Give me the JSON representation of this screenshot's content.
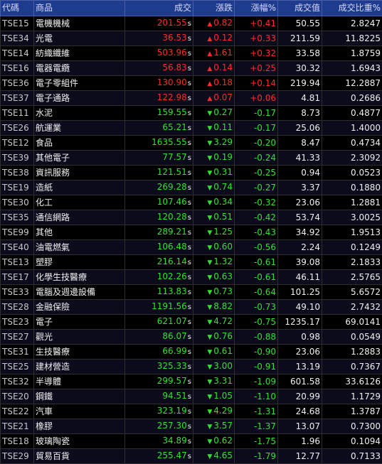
{
  "headers": {
    "code": "代碼",
    "name": "商品",
    "price": "成交",
    "change": "漲跌",
    "pct": "漲幅%",
    "value": "成交值",
    "weight": "成交比重%"
  },
  "colors": {
    "up": "#ff2a2a",
    "down": "#2fe22f",
    "header_bg": "#1e3b8e"
  },
  "rows": [
    {
      "code": "TSE15",
      "name": "電機機械",
      "price": "201.55",
      "s": "s",
      "arrow": "▲",
      "change": "0.82",
      "pct": "+0.41",
      "value": "50.55",
      "weight": "2.8247",
      "dir": "up"
    },
    {
      "code": "TSE34",
      "name": "光電",
      "price": "36.53",
      "s": "s",
      "arrow": "▲",
      "change": "0.12",
      "pct": "+0.33",
      "value": "211.59",
      "weight": "11.8225",
      "dir": "up"
    },
    {
      "code": "TSE14",
      "name": "紡織纖維",
      "price": "503.96",
      "s": "s",
      "arrow": "▲",
      "change": "1.61",
      "pct": "+0.32",
      "value": "33.58",
      "weight": "1.8759",
      "dir": "up"
    },
    {
      "code": "TSE16",
      "name": "電器電纜",
      "price": "56.83",
      "s": "s",
      "arrow": "▲",
      "change": "0.14",
      "pct": "+0.25",
      "value": "30.32",
      "weight": "1.6943",
      "dir": "up"
    },
    {
      "code": "TSE36",
      "name": "電子零組件",
      "price": "130.90",
      "s": "s",
      "arrow": "▲",
      "change": "0.18",
      "pct": "+0.14",
      "value": "219.94",
      "weight": "12.2887",
      "dir": "up"
    },
    {
      "code": "TSE37",
      "name": "電子通路",
      "price": "122.98",
      "s": "s",
      "arrow": "▲",
      "change": "0.07",
      "pct": "+0.06",
      "value": "4.81",
      "weight": "0.2686",
      "dir": "up"
    },
    {
      "code": "TSE11",
      "name": "水泥",
      "price": "159.55",
      "s": "s",
      "arrow": "▼",
      "change": "0.27",
      "pct": "-0.17",
      "value": "8.73",
      "weight": "0.4877",
      "dir": "down"
    },
    {
      "code": "TSE26",
      "name": "航運業",
      "price": "65.21",
      "s": "s",
      "arrow": "▼",
      "change": "0.11",
      "pct": "-0.17",
      "value": "25.06",
      "weight": "1.4000",
      "dir": "down"
    },
    {
      "code": "TSE12",
      "name": "食品",
      "price": "1635.55",
      "s": "s",
      "arrow": "▼",
      "change": "3.29",
      "pct": "-0.20",
      "value": "8.47",
      "weight": "0.4734",
      "dir": "down"
    },
    {
      "code": "TSE39",
      "name": "其他電子",
      "price": "77.57",
      "s": "s",
      "arrow": "▼",
      "change": "0.19",
      "pct": "-0.24",
      "value": "41.33",
      "weight": "2.3092",
      "dir": "down"
    },
    {
      "code": "TSE38",
      "name": "資訊服務",
      "price": "121.51",
      "s": "s",
      "arrow": "▼",
      "change": "0.31",
      "pct": "-0.25",
      "value": "0.94",
      "weight": "0.0523",
      "dir": "down"
    },
    {
      "code": "TSE19",
      "name": "造紙",
      "price": "269.28",
      "s": "s",
      "arrow": "▼",
      "change": "0.74",
      "pct": "-0.27",
      "value": "3.37",
      "weight": "0.1880",
      "dir": "down"
    },
    {
      "code": "TSE30",
      "name": "化工",
      "price": "107.46",
      "s": "s",
      "arrow": "▼",
      "change": "0.34",
      "pct": "-0.32",
      "value": "23.06",
      "weight": "1.2881",
      "dir": "down"
    },
    {
      "code": "TSE35",
      "name": "通信網路",
      "price": "120.28",
      "s": "s",
      "arrow": "▼",
      "change": "0.51",
      "pct": "-0.42",
      "value": "53.74",
      "weight": "3.0025",
      "dir": "down"
    },
    {
      "code": "TSE99",
      "name": "其他",
      "price": "289.21",
      "s": "s",
      "arrow": "▼",
      "change": "1.25",
      "pct": "-0.43",
      "value": "34.92",
      "weight": "1.9513",
      "dir": "down"
    },
    {
      "code": "TSE40",
      "name": "油電燃氣",
      "price": "106.48",
      "s": "s",
      "arrow": "▼",
      "change": "0.60",
      "pct": "-0.56",
      "value": "2.24",
      "weight": "0.1249",
      "dir": "down"
    },
    {
      "code": "TSE13",
      "name": "塑膠",
      "price": "216.14",
      "s": "s",
      "arrow": "▼",
      "change": "1.32",
      "pct": "-0.61",
      "value": "39.08",
      "weight": "2.1833",
      "dir": "down"
    },
    {
      "code": "TSE17",
      "name": "化學生技醫療",
      "price": "102.26",
      "s": "s",
      "arrow": "▼",
      "change": "0.63",
      "pct": "-0.61",
      "value": "46.11",
      "weight": "2.5765",
      "dir": "down"
    },
    {
      "code": "TSE33",
      "name": "電腦及週邊設備",
      "price": "113.83",
      "s": "s",
      "arrow": "▼",
      "change": "0.73",
      "pct": "-0.64",
      "value": "101.25",
      "weight": "5.6572",
      "dir": "down"
    },
    {
      "code": "TSE28",
      "name": "金融保險",
      "price": "1191.56",
      "s": "s",
      "arrow": "▼",
      "change": "8.82",
      "pct": "-0.73",
      "value": "49.10",
      "weight": "2.7432",
      "dir": "down"
    },
    {
      "code": "TSE23",
      "name": "電子",
      "price": "621.07",
      "s": "s",
      "arrow": "▼",
      "change": "4.72",
      "pct": "-0.75",
      "value": "1235.17",
      "weight": "69.0141",
      "dir": "down"
    },
    {
      "code": "TSE27",
      "name": "觀光",
      "price": "86.07",
      "s": "s",
      "arrow": "▼",
      "change": "0.76",
      "pct": "-0.88",
      "value": "0.98",
      "weight": "0.0549",
      "dir": "down"
    },
    {
      "code": "TSE31",
      "name": "生技醫療",
      "price": "66.99",
      "s": "s",
      "arrow": "▼",
      "change": "0.61",
      "pct": "-0.90",
      "value": "23.06",
      "weight": "1.2883",
      "dir": "down"
    },
    {
      "code": "TSE25",
      "name": "建材營造",
      "price": "325.33",
      "s": "s",
      "arrow": "▼",
      "change": "3.00",
      "pct": "-0.91",
      "value": "13.19",
      "weight": "0.7367",
      "dir": "down"
    },
    {
      "code": "TSE32",
      "name": "半導體",
      "price": "299.57",
      "s": "s",
      "arrow": "▼",
      "change": "3.31",
      "pct": "-1.09",
      "value": "601.58",
      "weight": "33.6126",
      "dir": "down"
    },
    {
      "code": "TSE20",
      "name": "鋼鐵",
      "price": "94.51",
      "s": "s",
      "arrow": "▼",
      "change": "1.05",
      "pct": "-1.10",
      "value": "20.99",
      "weight": "1.1729",
      "dir": "down"
    },
    {
      "code": "TSE22",
      "name": "汽車",
      "price": "323.19",
      "s": "s",
      "arrow": "▼",
      "change": "4.29",
      "pct": "-1.31",
      "value": "24.68",
      "weight": "1.3787",
      "dir": "down"
    },
    {
      "code": "TSE21",
      "name": "橡膠",
      "price": "257.30",
      "s": "s",
      "arrow": "▼",
      "change": "3.57",
      "pct": "-1.37",
      "value": "13.07",
      "weight": "0.7300",
      "dir": "down"
    },
    {
      "code": "TSE18",
      "name": "玻璃陶瓷",
      "price": "34.89",
      "s": "s",
      "arrow": "▼",
      "change": "0.62",
      "pct": "-1.75",
      "value": "1.96",
      "weight": "0.1094",
      "dir": "down"
    },
    {
      "code": "TSE29",
      "name": "貿易百貨",
      "price": "255.47",
      "s": "s",
      "arrow": "▼",
      "change": "4.65",
      "pct": "-1.79",
      "value": "12.77",
      "weight": "0.7133",
      "dir": "down"
    }
  ]
}
